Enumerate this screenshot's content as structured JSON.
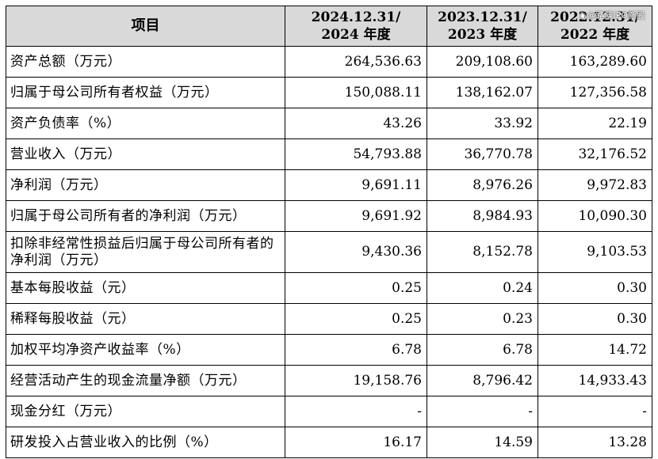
{
  "table": {
    "headers": [
      {
        "line1": "项目",
        "line2": ""
      },
      {
        "line1": "2024.12.31/",
        "line2": "2024 年度"
      },
      {
        "line1": "2023.12.31/",
        "line2": "2023 年度"
      },
      {
        "line1": "2022.12.31/",
        "line2": "2022 年度"
      }
    ],
    "rows": [
      {
        "label": "资产总额（万元）",
        "v2024": "264,536.63",
        "v2023": "209,108.60",
        "v2022": "163,289.60"
      },
      {
        "label": "归属于母公司所有者权益（万元）",
        "v2024": "150,088.11",
        "v2023": "138,162.07",
        "v2022": "127,356.58"
      },
      {
        "label": "资产负债率（%）",
        "v2024": "43.26",
        "v2023": "33.92",
        "v2022": "22.19"
      },
      {
        "label": "营业收入（万元）",
        "v2024": "54,793.88",
        "v2023": "36,770.78",
        "v2022": "32,176.52"
      },
      {
        "label": "净利润（万元）",
        "v2024": "9,691.11",
        "v2023": "8,976.26",
        "v2022": "9,972.83"
      },
      {
        "label": "归属于母公司所有者的净利润（万元）",
        "v2024": "9,691.92",
        "v2023": "8,984.93",
        "v2022": "10,090.30"
      },
      {
        "label": "扣除非经常性损益后归属于母公司所有者的净利润（万元）",
        "v2024": "9,430.36",
        "v2023": "8,152.78",
        "v2022": "9,103.53"
      },
      {
        "label": "基本每股收益（元）",
        "v2024": "0.25",
        "v2023": "0.24",
        "v2022": "0.30"
      },
      {
        "label": "稀释每股收益（元）",
        "v2024": "0.25",
        "v2023": "0.23",
        "v2022": "0.30"
      },
      {
        "label": "加权平均净资产收益率（%）",
        "v2024": "6.78",
        "v2023": "6.78",
        "v2022": "14.72"
      },
      {
        "label": "经营活动产生的现金流量净额（万元）",
        "v2024": "19,158.76",
        "v2023": "8,796.42",
        "v2022": "14,933.43"
      },
      {
        "label": "现金分红（万元）",
        "v2024": "-",
        "v2023": "-",
        "v2022": "-"
      },
      {
        "label": "研发投入占营业收入的比例（%）",
        "v2024": "16.17",
        "v2023": "14.59",
        "v2022": "13.28"
      }
    ]
  },
  "watermark": {
    "icon": "weibo-icon",
    "text": "@路演IPO新股"
  }
}
